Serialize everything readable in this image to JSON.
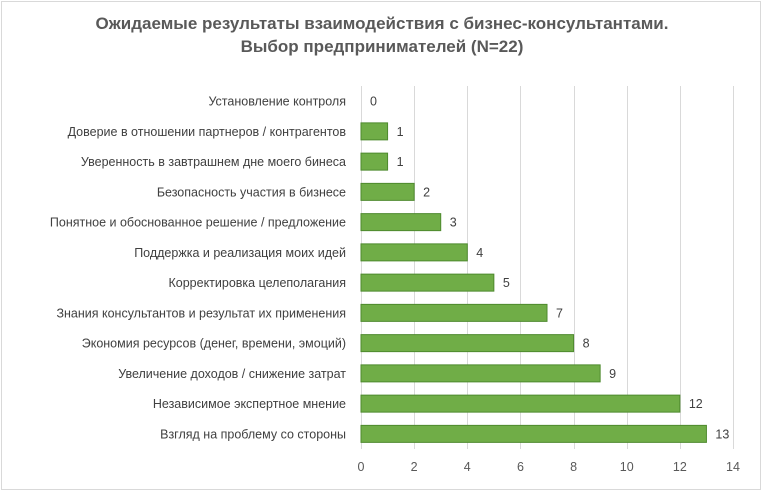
{
  "chart_data": {
    "type": "bar",
    "orientation": "horizontal",
    "title_lines": [
      "Ожидаемые результаты взаимодействия с бизнес-консультантами.",
      "Выбор предпринимателей (N=22)"
    ],
    "categories": [
      "Установление контроля",
      "Доверие в отношении партнеров / контрагентов",
      "Уверенность в завтрашнем дне моего бинеса",
      "Безопасность участия в бизнесе",
      "Понятное и обоснованное решение / предложение",
      "Поддержка и реализация моих идей",
      "Корректировка целеполагания",
      "Знания консультантов и результат их применения",
      "Экономия ресурсов (денег, времени, эмоций)",
      "Увеличение доходов / снижение затрат",
      "Независимое экспертное мнение",
      "Взгляд на проблему со стороны"
    ],
    "values": [
      0,
      1,
      1,
      2,
      3,
      4,
      5,
      7,
      8,
      9,
      12,
      13
    ],
    "xlim": [
      0,
      14
    ],
    "xticks": [
      0,
      2,
      4,
      6,
      8,
      10,
      12,
      14
    ],
    "grid": true,
    "legend": "none",
    "colors": {
      "bar_fill": "#70ad47",
      "bar_stroke": "#4e8a2e",
      "grid": "#d9d9d9",
      "title": "#595959",
      "text": "#404040"
    }
  }
}
